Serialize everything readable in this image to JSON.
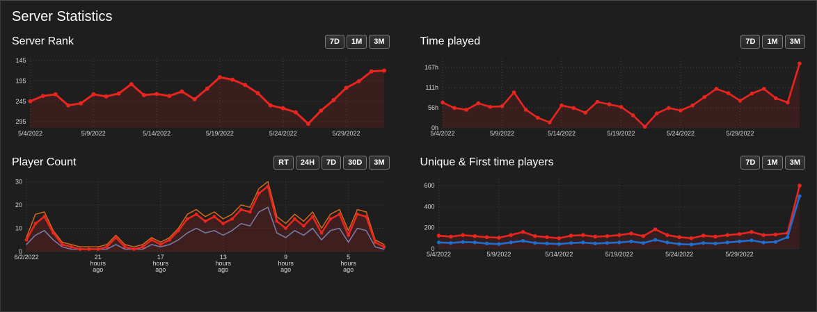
{
  "page": {
    "title": "Server Statistics"
  },
  "colors": {
    "background": "#1e1e1e",
    "grid": "#414141",
    "axis_text": "#d9d9d9",
    "red": "#e8251f",
    "orange": "#d2691e",
    "slate": "#7b7fae",
    "blue": "#1f6fd0"
  },
  "panels": [
    {
      "id": "server-rank",
      "title": "Server Rank",
      "buttons": [
        "7D",
        "1M",
        "3M"
      ]
    },
    {
      "id": "time-played",
      "title": "Time played",
      "buttons": [
        "7D",
        "1M",
        "3M"
      ]
    },
    {
      "id": "player-count",
      "title": "Player Count",
      "buttons": [
        "RT",
        "24H",
        "7D",
        "30D",
        "3M"
      ]
    },
    {
      "id": "unique-first",
      "title": "Unique & First time players",
      "buttons": [
        "7D",
        "1M",
        "3M"
      ]
    }
  ],
  "chart_data": [
    {
      "panel_id": "server-rank",
      "type": "line",
      "title": "Server Rank",
      "inverted_y": true,
      "ylim": [
        140,
        310
      ],
      "y_ticks": [
        145,
        195,
        245,
        295
      ],
      "y_tick_labels": [
        "145",
        "195",
        "245",
        "295"
      ],
      "x_ticks": [
        {
          "index": 0,
          "label": "5/4/2022"
        },
        {
          "index": 5,
          "label": "5/9/2022"
        },
        {
          "index": 10,
          "label": "5/14/2022"
        },
        {
          "index": 15,
          "label": "5/19/2022"
        },
        {
          "index": 20,
          "label": "5/24/2022"
        },
        {
          "index": 25,
          "label": "5/29/2022"
        }
      ],
      "series": [
        {
          "name": "rank",
          "color": "#e8251f",
          "width": 3,
          "dots": true,
          "dot_radius": 3,
          "fill": true,
          "fill_opacity": 0.14,
          "values": [
            245,
            232,
            228,
            255,
            250,
            228,
            233,
            226,
            203,
            230,
            227,
            232,
            221,
            240,
            214,
            186,
            192,
            205,
            225,
            255,
            262,
            272,
            300,
            268,
            242,
            212,
            196,
            172,
            170
          ]
        }
      ]
    },
    {
      "panel_id": "time-played",
      "type": "line",
      "title": "Time played",
      "inverted_y": false,
      "ylim": [
        0,
        192
      ],
      "y_ticks": [
        0,
        56,
        111,
        167
      ],
      "y_tick_labels": [
        "0h",
        "56h",
        "111h",
        "167h"
      ],
      "x_ticks": [
        {
          "index": 0,
          "label": "5/4/2022"
        },
        {
          "index": 5,
          "label": "5/9/2022"
        },
        {
          "index": 10,
          "label": "5/14/2022"
        },
        {
          "index": 15,
          "label": "5/19/2022"
        },
        {
          "index": 20,
          "label": "5/24/2022"
        },
        {
          "index": 25,
          "label": "5/29/2022"
        }
      ],
      "series": [
        {
          "name": "hours-played",
          "color": "#e8251f",
          "width": 2.6,
          "dots": true,
          "dot_radius": 2.8,
          "fill": true,
          "fill_opacity": 0.14,
          "values": [
            70,
            55,
            50,
            68,
            58,
            60,
            98,
            50,
            28,
            15,
            62,
            55,
            42,
            72,
            65,
            58,
            35,
            3,
            40,
            55,
            48,
            62,
            85,
            108,
            96,
            75,
            95,
            108,
            82,
            70,
            178
          ]
        }
      ]
    },
    {
      "panel_id": "player-count",
      "type": "line",
      "title": "Player Count",
      "inverted_y": false,
      "ylim": [
        0,
        31
      ],
      "y_ticks": [
        0,
        10,
        20,
        30
      ],
      "y_tick_labels": [
        "0",
        "10",
        "20",
        "30"
      ],
      "x_ticks": [
        {
          "index": 0,
          "label": "6/2/2022"
        },
        {
          "index": 8,
          "label": "21\nhours\nago"
        },
        {
          "index": 15,
          "label": "17\nhours\nago"
        },
        {
          "index": 22,
          "label": "13\nhours\nago"
        },
        {
          "index": 29,
          "label": "9\nhours\nago"
        },
        {
          "index": 36,
          "label": "5\nhours\nago"
        }
      ],
      "series": [
        {
          "name": "max-players",
          "color": "#d2691e",
          "width": 1.5,
          "dots": false,
          "fill": false,
          "values": [
            6,
            16,
            17,
            9,
            4,
            3,
            2,
            2,
            2,
            3,
            7,
            3,
            2,
            3,
            6,
            4,
            6,
            10,
            16,
            18,
            15,
            17,
            14,
            16,
            20,
            19,
            27,
            30,
            15,
            12,
            16,
            13,
            17,
            10,
            16,
            18,
            9,
            18,
            17,
            5,
            3
          ]
        },
        {
          "name": "min-players",
          "color": "#7b7fae",
          "width": 1.5,
          "dots": false,
          "fill": false,
          "values": [
            3,
            7,
            9,
            5,
            2,
            1,
            1,
            1,
            1,
            1,
            3,
            1,
            1,
            1,
            3,
            2,
            3,
            5,
            8,
            10,
            8,
            9,
            7,
            9,
            12,
            11,
            17,
            19,
            8,
            6,
            9,
            7,
            10,
            5,
            9,
            10,
            4,
            10,
            9,
            2,
            1
          ]
        },
        {
          "name": "avg-players",
          "color": "#e8251f",
          "width": 2.6,
          "dots": true,
          "dot_radius": 2.4,
          "fill": true,
          "fill_opacity": 0.16,
          "values": [
            5,
            12,
            15,
            8,
            3,
            2,
            1,
            1,
            1,
            2,
            6,
            2,
            1,
            2,
            5,
            3,
            5,
            9,
            14,
            16,
            13,
            15,
            12,
            14,
            18,
            17,
            25,
            28,
            13,
            10,
            14,
            11,
            15,
            8,
            14,
            16,
            7,
            16,
            15,
            4,
            2
          ]
        }
      ]
    },
    {
      "panel_id": "unique-first",
      "type": "line",
      "title": "Unique & First time players",
      "inverted_y": false,
      "ylim": [
        0,
        660
      ],
      "y_ticks": [
        0,
        200,
        400,
        600
      ],
      "y_tick_labels": [
        "0",
        "200",
        "400",
        "600"
      ],
      "x_ticks": [
        {
          "index": 0,
          "label": "5/4/2022"
        },
        {
          "index": 5,
          "label": "5/9/2022"
        },
        {
          "index": 10,
          "label": "5/14/2022"
        },
        {
          "index": 15,
          "label": "5/19/2022"
        },
        {
          "index": 20,
          "label": "5/24/2022"
        },
        {
          "index": 25,
          "label": "5/29/2022"
        }
      ],
      "series": [
        {
          "name": "unique-players",
          "color": "#e8251f",
          "width": 2.6,
          "dots": true,
          "dot_radius": 2.8,
          "fill": true,
          "fill_opacity": 0.12,
          "values": [
            125,
            115,
            130,
            120,
            110,
            105,
            130,
            160,
            120,
            110,
            100,
            125,
            130,
            115,
            120,
            130,
            145,
            120,
            185,
            130,
            110,
            100,
            125,
            115,
            130,
            140,
            160,
            130,
            135,
            150,
            600
          ]
        },
        {
          "name": "first-time-players",
          "color": "#1f6fd0",
          "width": 2.6,
          "dots": true,
          "dot_radius": 2.6,
          "fill": false,
          "values": [
            60,
            55,
            65,
            60,
            50,
            45,
            60,
            75,
            55,
            50,
            45,
            55,
            60,
            50,
            55,
            60,
            70,
            55,
            85,
            60,
            45,
            40,
            55,
            50,
            60,
            70,
            80,
            60,
            65,
            110,
            500
          ]
        }
      ]
    }
  ]
}
